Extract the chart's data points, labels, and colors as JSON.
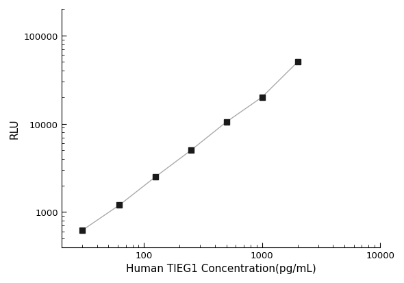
{
  "x_values": [
    30,
    62,
    125,
    250,
    500,
    1000,
    2000
  ],
  "y_values": [
    620,
    1200,
    2500,
    5000,
    10500,
    20000,
    50000
  ],
  "xlabel": "Human TIEG1 Concentration(pg/mL)",
  "ylabel": "RLU",
  "xlim_log": [
    20,
    10000
  ],
  "ylim_log": [
    400,
    200000
  ],
  "marker_color": "#1a1a1a",
  "line_color": "#aaaaaa",
  "marker": "s",
  "marker_size": 6,
  "line_width": 1.0,
  "background_color": "#ffffff",
  "xlabel_fontsize": 11,
  "ylabel_fontsize": 11,
  "tick_fontsize": 9.5
}
